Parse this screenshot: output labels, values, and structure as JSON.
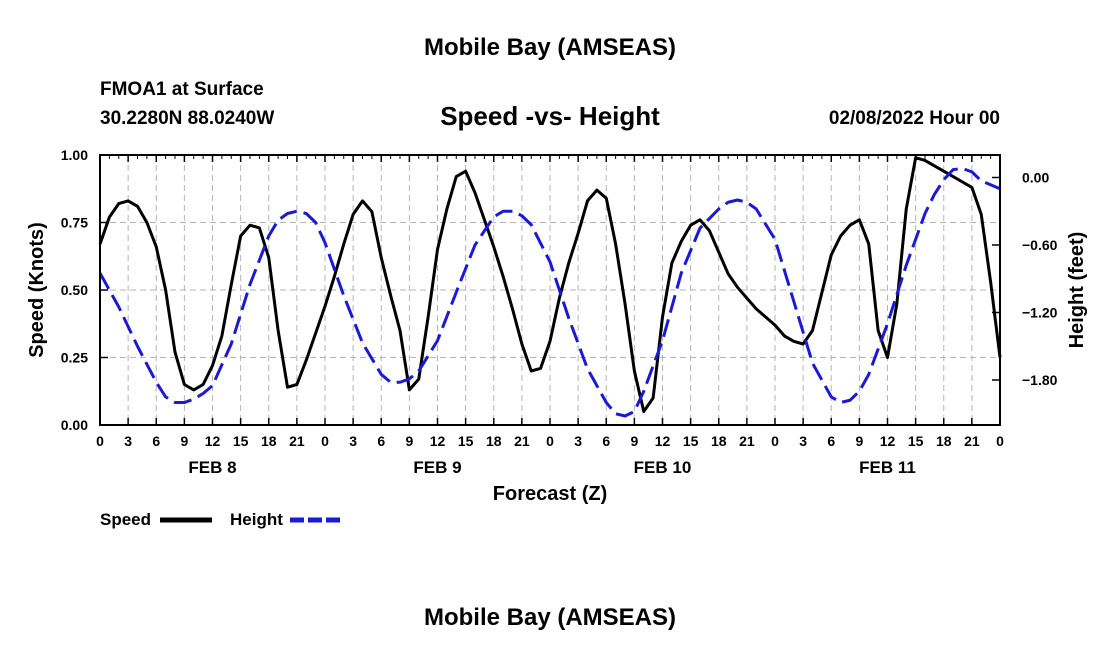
{
  "header": {
    "main_title": "Mobile Bay (AMSEAS)",
    "station": "FMOA1 at Surface",
    "coords": "30.2280N  88.0240W",
    "datetime": "02/08/2022 Hour 00",
    "footer_title": "Mobile Bay (AMSEAS)"
  },
  "chart_data": {
    "type": "line",
    "title": "Speed -vs- Height",
    "xlabel": "Forecast (Z)",
    "ylabel": "Speed (Knots)",
    "y2label": "Height (feet)",
    "x_unit": "hours from 02/08/2022 00Z",
    "xlim": [
      0,
      96
    ],
    "ylim": [
      0,
      1
    ],
    "y2lim": [
      -2.2,
      0.2
    ],
    "x_ticks": [
      0,
      3,
      6,
      9,
      12,
      15,
      18,
      21,
      24,
      27,
      30,
      33,
      36,
      39,
      42,
      45,
      48,
      51,
      54,
      57,
      60,
      63,
      66,
      69,
      72,
      75,
      78,
      81,
      84,
      87,
      90,
      93,
      96
    ],
    "x_tick_labels": [
      "0",
      "3",
      "6",
      "9",
      "12",
      "15",
      "18",
      "21",
      "0",
      "3",
      "6",
      "9",
      "12",
      "15",
      "18",
      "21",
      "0",
      "3",
      "6",
      "9",
      "12",
      "15",
      "18",
      "21",
      "0",
      "3",
      "6",
      "9",
      "12",
      "15",
      "18",
      "21",
      "0"
    ],
    "date_labels": [
      {
        "x": 12,
        "label": "FEB 8"
      },
      {
        "x": 36,
        "label": "FEB 9"
      },
      {
        "x": 60,
        "label": "FEB 10"
      },
      {
        "x": 84,
        "label": "FEB 11"
      }
    ],
    "y_ticks": [
      0,
      0.25,
      0.5,
      0.75,
      1.0
    ],
    "y_tick_labels": [
      "0.00",
      "0.25",
      "0.50",
      "0.75",
      "1.00"
    ],
    "y2_ticks": [
      0,
      -0.6,
      -1.2,
      -1.8
    ],
    "y2_tick_labels": [
      "0.00",
      "−0.60",
      "−1.20",
      "−1.80"
    ],
    "grid": true,
    "legend_position": "bottom-left",
    "series": [
      {
        "name": "Speed",
        "axis": "left",
        "color": "#000000",
        "style": "solid",
        "points": [
          [
            0,
            0.67
          ],
          [
            1,
            0.77
          ],
          [
            2,
            0.82
          ],
          [
            3,
            0.83
          ],
          [
            4,
            0.81
          ],
          [
            5,
            0.75
          ],
          [
            6,
            0.66
          ],
          [
            7,
            0.5
          ],
          [
            8,
            0.27
          ],
          [
            9,
            0.15
          ],
          [
            10,
            0.13
          ],
          [
            11,
            0.15
          ],
          [
            12,
            0.22
          ],
          [
            13,
            0.33
          ],
          [
            14,
            0.52
          ],
          [
            15,
            0.7
          ],
          [
            16,
            0.74
          ],
          [
            17,
            0.73
          ],
          [
            18,
            0.62
          ],
          [
            19,
            0.35
          ],
          [
            20,
            0.14
          ],
          [
            21,
            0.15
          ],
          [
            22,
            0.24
          ],
          [
            23,
            0.34
          ],
          [
            24,
            0.44
          ],
          [
            25,
            0.55
          ],
          [
            26,
            0.67
          ],
          [
            27,
            0.78
          ],
          [
            28,
            0.83
          ],
          [
            29,
            0.79
          ],
          [
            30,
            0.62
          ],
          [
            31,
            0.48
          ],
          [
            32,
            0.35
          ],
          [
            33,
            0.13
          ],
          [
            34,
            0.17
          ],
          [
            35,
            0.4
          ],
          [
            36,
            0.65
          ],
          [
            37,
            0.8
          ],
          [
            38,
            0.92
          ],
          [
            39,
            0.94
          ],
          [
            40,
            0.86
          ],
          [
            41,
            0.76
          ],
          [
            42,
            0.66
          ],
          [
            43,
            0.55
          ],
          [
            44,
            0.43
          ],
          [
            45,
            0.3
          ],
          [
            46,
            0.2
          ],
          [
            47,
            0.21
          ],
          [
            48,
            0.31
          ],
          [
            49,
            0.47
          ],
          [
            50,
            0.6
          ],
          [
            51,
            0.71
          ],
          [
            52,
            0.83
          ],
          [
            53,
            0.87
          ],
          [
            54,
            0.84
          ],
          [
            55,
            0.67
          ],
          [
            56,
            0.45
          ],
          [
            57,
            0.2
          ],
          [
            58,
            0.05
          ],
          [
            59,
            0.1
          ],
          [
            60,
            0.4
          ],
          [
            61,
            0.6
          ],
          [
            62,
            0.68
          ],
          [
            63,
            0.74
          ],
          [
            64,
            0.76
          ],
          [
            65,
            0.72
          ],
          [
            66,
            0.64
          ],
          [
            67,
            0.56
          ],
          [
            68,
            0.51
          ],
          [
            69,
            0.47
          ],
          [
            70,
            0.43
          ],
          [
            71,
            0.4
          ],
          [
            72,
            0.37
          ],
          [
            73,
            0.33
          ],
          [
            74,
            0.31
          ],
          [
            75,
            0.3
          ],
          [
            76,
            0.35
          ],
          [
            77,
            0.49
          ],
          [
            78,
            0.63
          ],
          [
            79,
            0.7
          ],
          [
            80,
            0.74
          ],
          [
            81,
            0.76
          ],
          [
            82,
            0.67
          ],
          [
            83,
            0.35
          ],
          [
            84,
            0.25
          ],
          [
            85,
            0.45
          ],
          [
            86,
            0.8
          ],
          [
            87,
            0.99
          ],
          [
            88,
            0.98
          ],
          [
            89,
            0.96
          ],
          [
            90,
            0.94
          ],
          [
            91,
            0.92
          ],
          [
            92,
            0.9
          ],
          [
            93,
            0.88
          ],
          [
            94,
            0.78
          ],
          [
            95,
            0.53
          ],
          [
            96,
            0.25
          ]
        ]
      },
      {
        "name": "Height",
        "axis": "right",
        "color": "#1a1ad6",
        "style": "dashed",
        "points": [
          [
            0,
            -0.85
          ],
          [
            2,
            -1.15
          ],
          [
            4,
            -1.5
          ],
          [
            6,
            -1.82
          ],
          [
            7,
            -1.95
          ],
          [
            8,
            -2.0
          ],
          [
            9,
            -2.0
          ],
          [
            10,
            -1.97
          ],
          [
            11,
            -1.92
          ],
          [
            12,
            -1.85
          ],
          [
            14,
            -1.48
          ],
          [
            16,
            -0.95
          ],
          [
            18,
            -0.52
          ],
          [
            19,
            -0.38
          ],
          [
            20,
            -0.32
          ],
          [
            21,
            -0.3
          ],
          [
            22,
            -0.32
          ],
          [
            23,
            -0.4
          ],
          [
            24,
            -0.58
          ],
          [
            26,
            -1.05
          ],
          [
            28,
            -1.47
          ],
          [
            30,
            -1.75
          ],
          [
            31,
            -1.82
          ],
          [
            32,
            -1.82
          ],
          [
            33,
            -1.79
          ],
          [
            34,
            -1.72
          ],
          [
            36,
            -1.45
          ],
          [
            38,
            -1.02
          ],
          [
            40,
            -0.6
          ],
          [
            42,
            -0.35
          ],
          [
            43,
            -0.3
          ],
          [
            44,
            -0.3
          ],
          [
            45,
            -0.34
          ],
          [
            46,
            -0.42
          ],
          [
            48,
            -0.75
          ],
          [
            50,
            -1.25
          ],
          [
            52,
            -1.7
          ],
          [
            54,
            -2.0
          ],
          [
            55,
            -2.1
          ],
          [
            56,
            -2.12
          ],
          [
            57,
            -2.08
          ],
          [
            58,
            -1.9
          ],
          [
            60,
            -1.45
          ],
          [
            62,
            -0.85
          ],
          [
            64,
            -0.45
          ],
          [
            66,
            -0.28
          ],
          [
            67,
            -0.22
          ],
          [
            68,
            -0.2
          ],
          [
            69,
            -0.22
          ],
          [
            70,
            -0.28
          ],
          [
            72,
            -0.55
          ],
          [
            74,
            -1.1
          ],
          [
            76,
            -1.65
          ],
          [
            78,
            -1.95
          ],
          [
            79,
            -2.0
          ],
          [
            80,
            -1.98
          ],
          [
            81,
            -1.9
          ],
          [
            82,
            -1.75
          ],
          [
            84,
            -1.3
          ],
          [
            86,
            -0.78
          ],
          [
            88,
            -0.32
          ],
          [
            89,
            -0.15
          ],
          [
            90,
            -0.02
          ],
          [
            91,
            0.07
          ],
          [
            92,
            0.08
          ],
          [
            93,
            0.05
          ],
          [
            94,
            -0.03
          ],
          [
            96,
            -0.1
          ]
        ]
      }
    ]
  }
}
